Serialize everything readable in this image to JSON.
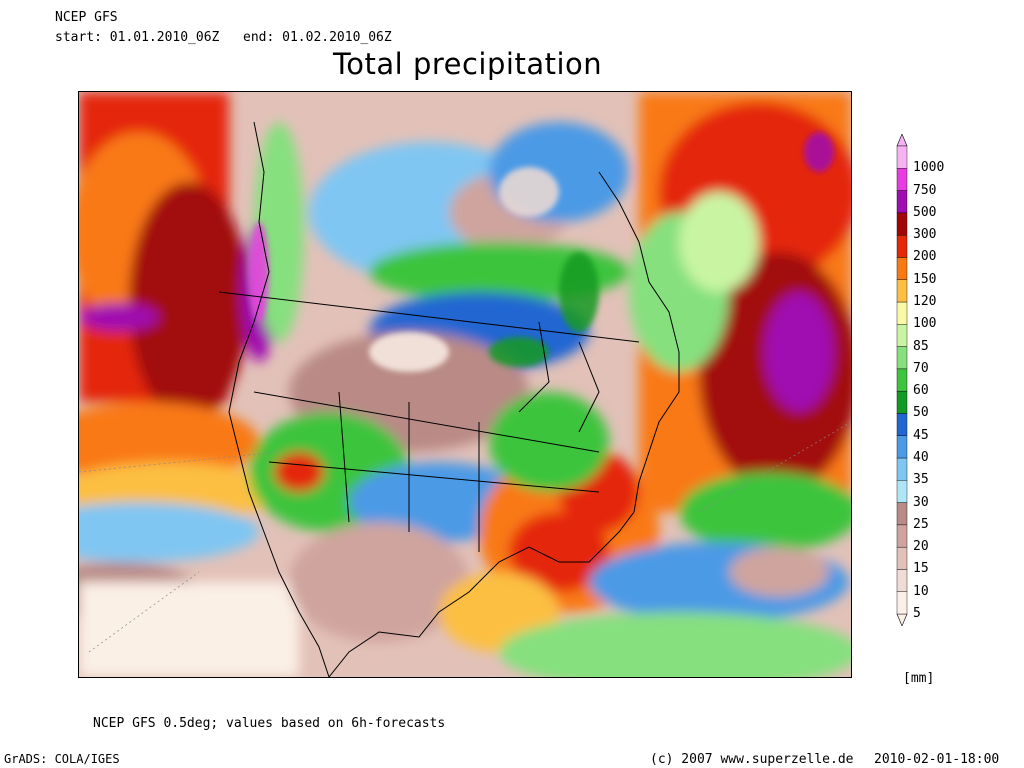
{
  "header": {
    "model": "NCEP GFS",
    "start": "start: 01.01.2010_06Z",
    "end": "end: 01.02.2010_06Z",
    "title": "Total precipitation"
  },
  "legend": {
    "unit": "[mm]",
    "classes": [
      {
        "label": "5",
        "color": "#fbf0e6"
      },
      {
        "label": "10",
        "color": "#f1dcd3"
      },
      {
        "label": "15",
        "color": "#e2c1b8"
      },
      {
        "label": "20",
        "color": "#cfa49e"
      },
      {
        "label": "25",
        "color": "#b98a86"
      },
      {
        "label": "30",
        "color": "#aee6f7"
      },
      {
        "label": "35",
        "color": "#7fc6f3"
      },
      {
        "label": "40",
        "color": "#4b9ae6"
      },
      {
        "label": "45",
        "color": "#2166d2"
      },
      {
        "label": "50",
        "color": "#129a24"
      },
      {
        "label": "60",
        "color": "#3ec43e"
      },
      {
        "label": "70",
        "color": "#86e07e"
      },
      {
        "label": "85",
        "color": "#c9f5a3"
      },
      {
        "label": "100",
        "color": "#fbf9a6"
      },
      {
        "label": "120",
        "color": "#fcbf42"
      },
      {
        "label": "150",
        "color": "#f97913"
      },
      {
        "label": "200",
        "color": "#e42808"
      },
      {
        "label": "300",
        "color": "#a20708"
      },
      {
        "label": "500",
        "color": "#a00db0"
      },
      {
        "label": "750",
        "color": "#e83ce2"
      },
      {
        "label": "1000",
        "color": "#f7b2f4"
      }
    ]
  },
  "footer": {
    "note": "NCEP GFS 0.5deg; values based on 6h-forecasts",
    "grads": "GrADS: COLA/IGES",
    "copyright": "(c) 2007 www.superzelle.de",
    "timestamp": "2010-02-01-18:00"
  }
}
